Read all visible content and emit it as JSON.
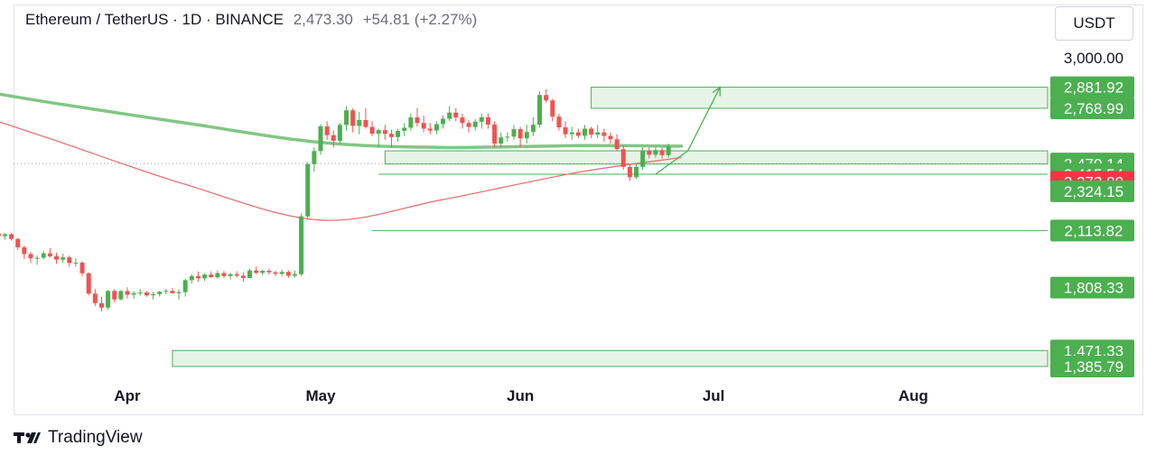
{
  "header": {
    "title": "Ethereum / TetherUS · 1D · BINANCE",
    "last_price": "2,473.30",
    "change": "+54.81 (+2.27%)"
  },
  "currency_button": "USDT",
  "footer": {
    "brand": "TradingView"
  },
  "colors": {
    "up": "#4caf50",
    "down": "#ef5350",
    "ma_slow": "#81c784",
    "ma_fast": "#e57373",
    "zone_fill": "#e6f4e8",
    "zone_line": "#4caf50",
    "label_green": "#4caf50",
    "label_red": "#f23645"
  },
  "chart_data": {
    "type": "candlestick",
    "x_labels": [
      "Apr",
      "May",
      "Jun",
      "Jul",
      "Aug"
    ],
    "x_label_dates": [
      "2024-04-01",
      "2024-05-01",
      "2024-06-01",
      "2024-07-01",
      "2024-08-01"
    ],
    "y_top_label": "3,000.00",
    "axis_labels": [
      {
        "text": "2,881.92",
        "price": 2881.92,
        "color": "green"
      },
      {
        "text": "2,768.99",
        "price": 2768.99,
        "color": "green"
      },
      {
        "text": "2,473.30",
        "price": 2473.3,
        "color": "green",
        "countdown": "18:32:23"
      },
      {
        "text": "2,470.14",
        "price": 2470.14,
        "color": "green"
      },
      {
        "text": "2,415.54",
        "price": 2415.54,
        "color": "green"
      },
      {
        "text": "2,373.80",
        "price": 2373.8,
        "color": "red"
      },
      {
        "text": "2,324.15",
        "price": 2324.15,
        "color": "green"
      },
      {
        "text": "2,113.82",
        "price": 2113.82,
        "color": "green"
      },
      {
        "text": "1,808.33",
        "price": 1808.33,
        "color": "green"
      },
      {
        "text": "1,471.33",
        "price": 1471.33,
        "color": "green"
      },
      {
        "text": "1,385.79",
        "price": 1385.79,
        "color": "green"
      }
    ],
    "zones": [
      {
        "from": "2024-06-12",
        "y1": 2881.92,
        "y2": 2768.99
      },
      {
        "from": "2024-05-11",
        "y1": 2541.0,
        "y2": 2470.14
      },
      {
        "from": "2024-04-08",
        "y1": 1471.33,
        "y2": 1385.79
      }
    ],
    "lines": [
      {
        "from": "2024-05-10",
        "y": 2415.54
      },
      {
        "from": "2024-05-09",
        "y": 2113.82
      }
    ],
    "projection": [
      {
        "date": "2024-06-22",
        "price": 2415.54
      },
      {
        "date": "2024-06-27",
        "price": 2541.0
      },
      {
        "date": "2024-07-02",
        "price": 2881.92
      }
    ],
    "ma_slow": [
      {
        "date": "2024-03-01",
        "price": 2911
      },
      {
        "date": "2024-03-20",
        "price": 2800
      },
      {
        "date": "2024-04-10",
        "price": 2690
      },
      {
        "date": "2024-05-01",
        "price": 2586
      },
      {
        "date": "2024-05-20",
        "price": 2559
      },
      {
        "date": "2024-06-10",
        "price": 2569
      },
      {
        "date": "2024-06-26",
        "price": 2566
      }
    ],
    "ma_fast": [
      {
        "date": "2024-03-01",
        "price": 2822
      },
      {
        "date": "2024-03-20",
        "price": 2606
      },
      {
        "date": "2024-04-10",
        "price": 2361
      },
      {
        "date": "2024-05-01",
        "price": 2170
      },
      {
        "date": "2024-05-20",
        "price": 2280
      },
      {
        "date": "2024-06-10",
        "price": 2426
      },
      {
        "date": "2024-06-26",
        "price": 2505
      }
    ],
    "candles_start": "2024-03-01",
    "candles": [
      [
        2004,
        2020,
        1992,
        2015
      ],
      [
        2015,
        2040,
        2000,
        2027
      ],
      [
        2027,
        2035,
        2000,
        2011
      ],
      [
        2011,
        2025,
        1990,
        2001
      ],
      [
        2001,
        2045,
        1995,
        2040
      ],
      [
        2040,
        2079,
        2030,
        2075
      ],
      [
        2075,
        2096,
        2040,
        2059
      ],
      [
        2059,
        2069,
        2035,
        2044
      ],
      [
        2044,
        2083,
        2040,
        2075
      ],
      [
        2075,
        2085,
        2055,
        2067
      ],
      [
        2067,
        2105,
        2060,
        2098
      ],
      [
        2098,
        2115,
        2078,
        2084
      ],
      [
        2084,
        2102,
        2065,
        2094
      ],
      [
        2094,
        2102,
        2060,
        2069
      ],
      [
        2069,
        2075,
        2010,
        2024
      ],
      [
        2024,
        2033,
        1960,
        1988
      ],
      [
        1988,
        2000,
        1940,
        1965
      ],
      [
        1965,
        1980,
        1930,
        1968
      ],
      [
        1968,
        2005,
        1960,
        1992
      ],
      [
        1992,
        2020,
        1970,
        1976
      ],
      [
        1976,
        1995,
        1935,
        1958
      ],
      [
        1958,
        1990,
        1940,
        1970
      ],
      [
        1970,
        1980,
        1920,
        1940
      ],
      [
        1940,
        1966,
        1920,
        1942
      ],
      [
        1942,
        1950,
        1870,
        1885
      ],
      [
        1885,
        1890,
        1766,
        1776
      ],
      [
        1776,
        1800,
        1710,
        1725
      ],
      [
        1725,
        1760,
        1680,
        1701
      ],
      [
        1701,
        1795,
        1690,
        1790
      ],
      [
        1790,
        1800,
        1730,
        1745
      ],
      [
        1745,
        1795,
        1740,
        1790
      ],
      [
        1790,
        1810,
        1750,
        1770
      ],
      [
        1770,
        1790,
        1748,
        1778
      ],
      [
        1778,
        1800,
        1765,
        1782
      ],
      [
        1782,
        1790,
        1759,
        1767
      ],
      [
        1767,
        1785,
        1745,
        1773
      ],
      [
        1773,
        1790,
        1760,
        1786
      ],
      [
        1786,
        1800,
        1772,
        1791
      ],
      [
        1791,
        1805,
        1776,
        1778
      ],
      [
        1778,
        1800,
        1745,
        1784
      ],
      [
        1784,
        1855,
        1760,
        1848
      ],
      [
        1848,
        1880,
        1830,
        1870
      ],
      [
        1870,
        1895,
        1840,
        1858
      ],
      [
        1858,
        1887,
        1845,
        1878
      ],
      [
        1878,
        1895,
        1860,
        1864
      ],
      [
        1864,
        1900,
        1855,
        1886
      ],
      [
        1886,
        1897,
        1860,
        1870
      ],
      [
        1870,
        1888,
        1852,
        1880
      ],
      [
        1880,
        1896,
        1862,
        1872
      ],
      [
        1872,
        1890,
        1840,
        1860
      ],
      [
        1860,
        1909,
        1858,
        1900
      ],
      [
        1900,
        1920,
        1880,
        1887
      ],
      [
        1887,
        1905,
        1875,
        1898
      ],
      [
        1898,
        1910,
        1878,
        1890
      ],
      [
        1890,
        1898,
        1870,
        1882
      ],
      [
        1882,
        1904,
        1870,
        1892
      ],
      [
        1892,
        1900,
        1860,
        1872
      ],
      [
        1872,
        1900,
        1862,
        1880
      ],
      [
        1880,
        2205,
        1870,
        2190
      ],
      [
        2190,
        2480,
        2180,
        2470
      ],
      [
        2470,
        2560,
        2430,
        2540
      ],
      [
        2540,
        2685,
        2520,
        2672
      ],
      [
        2672,
        2700,
        2600,
        2625
      ],
      [
        2625,
        2650,
        2560,
        2595
      ],
      [
        2595,
        2690,
        2580,
        2680
      ],
      [
        2680,
        2780,
        2650,
        2758
      ],
      [
        2758,
        2770,
        2640,
        2675
      ],
      [
        2675,
        2750,
        2630,
        2706
      ],
      [
        2706,
        2770,
        2660,
        2669
      ],
      [
        2669,
        2700,
        2620,
        2633
      ],
      [
        2633,
        2660,
        2560,
        2652
      ],
      [
        2652,
        2680,
        2600,
        2632
      ],
      [
        2632,
        2655,
        2560,
        2615
      ],
      [
        2615,
        2660,
        2590,
        2648
      ],
      [
        2648,
        2690,
        2620,
        2665
      ],
      [
        2665,
        2740,
        2650,
        2720
      ],
      [
        2720,
        2770,
        2670,
        2690
      ],
      [
        2690,
        2730,
        2640,
        2660
      ],
      [
        2660,
        2690,
        2630,
        2650
      ],
      [
        2650,
        2700,
        2630,
        2684
      ],
      [
        2684,
        2730,
        2660,
        2713
      ],
      [
        2713,
        2780,
        2700,
        2746
      ],
      [
        2746,
        2770,
        2700,
        2720
      ],
      [
        2720,
        2740,
        2660,
        2690
      ],
      [
        2690,
        2705,
        2640,
        2669
      ],
      [
        2669,
        2710,
        2650,
        2697
      ],
      [
        2697,
        2740,
        2660,
        2721
      ],
      [
        2721,
        2740,
        2660,
        2682
      ],
      [
        2682,
        2700,
        2560,
        2580
      ],
      [
        2580,
        2640,
        2560,
        2613
      ],
      [
        2613,
        2640,
        2590,
        2617
      ],
      [
        2617,
        2680,
        2600,
        2657
      ],
      [
        2657,
        2670,
        2560,
        2608
      ],
      [
        2608,
        2680,
        2580,
        2642
      ],
      [
        2642,
        2720,
        2620,
        2681
      ],
      [
        2681,
        2860,
        2665,
        2840
      ],
      [
        2840,
        2870,
        2800,
        2811
      ],
      [
        2811,
        2820,
        2700,
        2724
      ],
      [
        2724,
        2740,
        2650,
        2667
      ],
      [
        2667,
        2700,
        2610,
        2630
      ],
      [
        2630,
        2670,
        2600,
        2640
      ],
      [
        2640,
        2660,
        2610,
        2622
      ],
      [
        2622,
        2680,
        2600,
        2660
      ],
      [
        2660,
        2670,
        2610,
        2628
      ],
      [
        2628,
        2680,
        2610,
        2640
      ],
      [
        2640,
        2660,
        2590,
        2621
      ],
      [
        2621,
        2640,
        2580,
        2603
      ],
      [
        2603,
        2630,
        2540,
        2550
      ],
      [
        2550,
        2570,
        2440,
        2455
      ],
      [
        2455,
        2470,
        2380,
        2400
      ],
      [
        2400,
        2470,
        2390,
        2455
      ],
      [
        2455,
        2560,
        2440,
        2540
      ],
      [
        2540,
        2560,
        2500,
        2520
      ],
      [
        2520,
        2560,
        2505,
        2545
      ],
      [
        2545,
        2560,
        2500,
        2518
      ],
      [
        2518,
        2580,
        2505,
        2565
      ]
    ]
  }
}
